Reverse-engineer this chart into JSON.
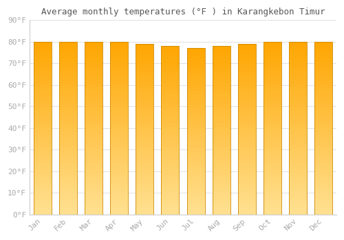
{
  "title": "Average monthly temperatures (°F ) in Karangkebon Timur",
  "months": [
    "Jan",
    "Feb",
    "Mar",
    "Apr",
    "May",
    "Jun",
    "Jul",
    "Aug",
    "Sep",
    "Oct",
    "Nov",
    "Dec"
  ],
  "values": [
    80,
    80,
    80,
    80,
    79,
    78,
    77,
    78,
    79,
    80,
    80,
    80
  ],
  "ylim": [
    0,
    90
  ],
  "yticks": [
    0,
    10,
    20,
    30,
    40,
    50,
    60,
    70,
    80,
    90
  ],
  "ytick_labels": [
    "0°F",
    "10°F",
    "20°F",
    "30°F",
    "40°F",
    "50°F",
    "60°F",
    "70°F",
    "80°F",
    "90°F"
  ],
  "bar_color_top": "#FFA500",
  "bar_color_bottom": "#FFE090",
  "bar_edge_color": "#CC8800",
  "background_color": "#ffffff",
  "grid_color": "#e0e0e0",
  "title_fontsize": 9,
  "tick_fontsize": 8,
  "font_color": "#aaaaaa",
  "bar_width": 0.7
}
